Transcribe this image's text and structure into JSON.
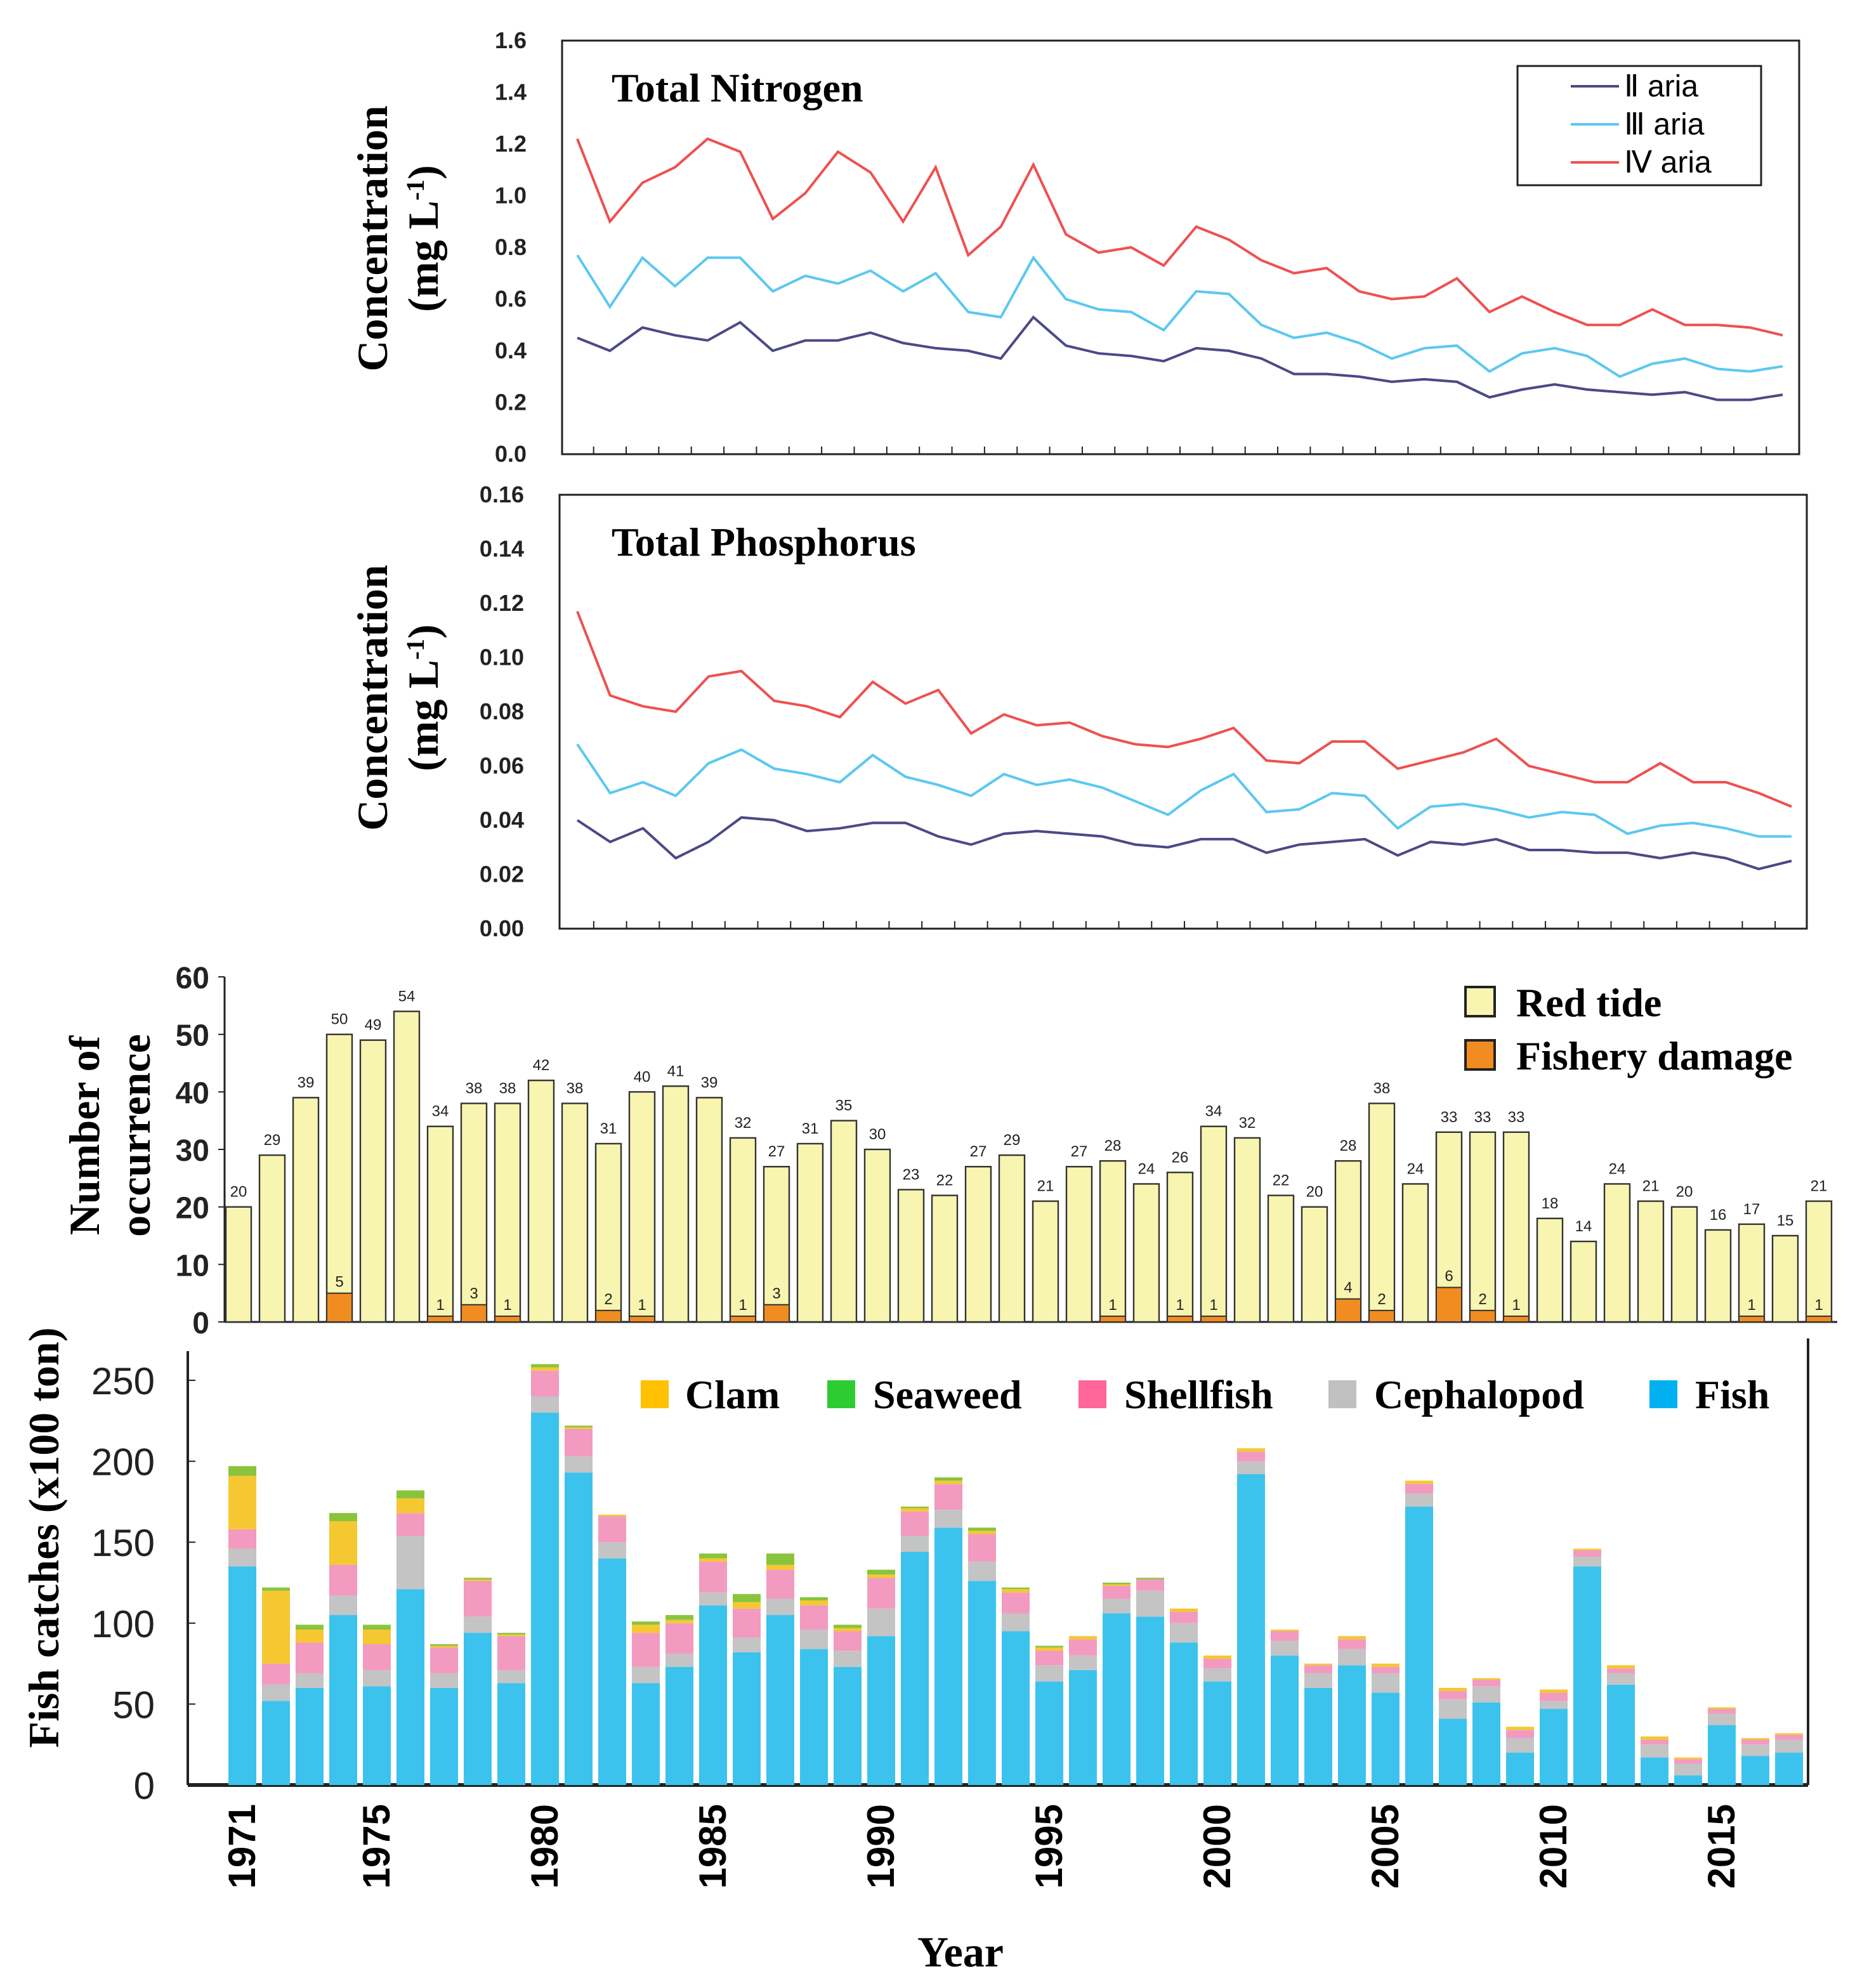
{
  "chart_data": [
    {
      "type": "line",
      "title": "Total Nitrogen",
      "ylabel": [
        "Concentration",
        "(mg L",
        "-1",
        ")"
      ],
      "ylim": [
        0,
        1.6
      ],
      "yticks": [
        "0.0",
        "0.2",
        "0.4",
        "0.6",
        "0.8",
        "1.0",
        "1.2",
        "1.4",
        "1.6"
      ],
      "grid": false,
      "legend": "top-right",
      "series": [
        {
          "name": "Ⅱ aria",
          "color": "#4b4a86",
          "values": [
            0.45,
            0.4,
            0.49,
            0.46,
            0.44,
            0.51,
            0.4,
            0.44,
            0.44,
            0.47,
            0.43,
            0.41,
            0.4,
            0.37,
            0.53,
            0.42,
            0.39,
            0.38,
            0.36,
            0.41,
            0.4,
            0.37,
            0.31,
            0.31,
            0.3,
            0.28,
            0.29,
            0.28,
            0.22,
            0.25,
            0.27,
            0.25,
            0.24,
            0.23,
            0.24,
            0.21,
            0.21,
            0.23
          ]
        },
        {
          "name": "Ⅲ aria",
          "color": "#5bc8f0",
          "values": [
            0.77,
            0.57,
            0.76,
            0.65,
            0.76,
            0.76,
            0.63,
            0.69,
            0.66,
            0.71,
            0.63,
            0.7,
            0.55,
            0.53,
            0.76,
            0.6,
            0.56,
            0.55,
            0.48,
            0.63,
            0.62,
            0.5,
            0.45,
            0.47,
            0.43,
            0.37,
            0.41,
            0.42,
            0.32,
            0.39,
            0.41,
            0.38,
            0.3,
            0.35,
            0.37,
            0.33,
            0.32,
            0.34
          ]
        },
        {
          "name": "Ⅳ aria",
          "color": "#ef5050",
          "values": [
            1.22,
            0.9,
            1.05,
            1.11,
            1.22,
            1.17,
            0.91,
            1.01,
            1.17,
            1.09,
            0.9,
            1.11,
            0.77,
            0.88,
            1.12,
            0.85,
            0.78,
            0.8,
            0.73,
            0.88,
            0.83,
            0.75,
            0.7,
            0.72,
            0.63,
            0.6,
            0.61,
            0.68,
            0.55,
            0.61,
            0.55,
            0.5,
            0.5,
            0.56,
            0.5,
            0.5,
            0.49,
            0.46
          ]
        }
      ]
    },
    {
      "type": "line",
      "title": "Total Phosphorus",
      "ylabel": [
        "Concentration",
        "(mg L",
        "-1",
        ")"
      ],
      "ylim": [
        0,
        0.16
      ],
      "yticks": [
        "0.00",
        "0.02",
        "0.04",
        "0.06",
        "0.08",
        "0.10",
        "0.12",
        "0.14",
        "0.16"
      ],
      "grid": false,
      "series": [
        {
          "color": "#4b4a86",
          "values": [
            0.04,
            0.032,
            0.037,
            0.026,
            0.032,
            0.041,
            0.04,
            0.036,
            0.037,
            0.039,
            0.039,
            0.034,
            0.031,
            0.035,
            0.036,
            0.035,
            0.034,
            0.031,
            0.03,
            0.033,
            0.033,
            0.028,
            0.031,
            0.032,
            0.033,
            0.027,
            0.032,
            0.031,
            0.033,
            0.029,
            0.029,
            0.028,
            0.028,
            0.026,
            0.028,
            0.026,
            0.022,
            0.025
          ]
        },
        {
          "color": "#5bc8f0",
          "values": [
            0.068,
            0.05,
            0.054,
            0.049,
            0.061,
            0.066,
            0.059,
            0.057,
            0.054,
            0.064,
            0.056,
            0.053,
            0.049,
            0.057,
            0.053,
            0.055,
            0.052,
            0.047,
            0.042,
            0.051,
            0.057,
            0.043,
            0.044,
            0.05,
            0.049,
            0.037,
            0.045,
            0.046,
            0.044,
            0.041,
            0.043,
            0.042,
            0.035,
            0.038,
            0.039,
            0.037,
            0.034,
            0.034
          ]
        },
        {
          "color": "#ef5050",
          "values": [
            0.117,
            0.086,
            0.082,
            0.08,
            0.093,
            0.095,
            0.084,
            0.082,
            0.078,
            0.091,
            0.083,
            0.088,
            0.072,
            0.079,
            0.075,
            0.076,
            0.071,
            0.068,
            0.067,
            0.07,
            0.074,
            0.062,
            0.061,
            0.069,
            0.069,
            0.059,
            0.062,
            0.065,
            0.07,
            0.06,
            0.057,
            0.054,
            0.054,
            0.061,
            0.054,
            0.054,
            0.05,
            0.045
          ]
        }
      ]
    },
    {
      "type": "bar",
      "ylabel": [
        "Number of",
        "occurrence"
      ],
      "ylim": [
        0,
        60
      ],
      "yticks": [
        "0",
        "10",
        "20",
        "30",
        "40",
        "50",
        "60"
      ],
      "legend": "top-right",
      "series": [
        {
          "name": "Red tide",
          "color": "#f8f5b0",
          "values": [
            20,
            29,
            39,
            50,
            49,
            54,
            34,
            38,
            38,
            42,
            38,
            31,
            40,
            41,
            39,
            32,
            27,
            31,
            35,
            30,
            23,
            22,
            27,
            29,
            21,
            27,
            28,
            24,
            26,
            34,
            32,
            22,
            20,
            28,
            38,
            24,
            33,
            33,
            33,
            18,
            14,
            24,
            21,
            20,
            16,
            17,
            15,
            21
          ]
        },
        {
          "name": "Fishery damage",
          "color": "#f08c20",
          "values": [
            0,
            0,
            0,
            5,
            0,
            0,
            1,
            3,
            1,
            0,
            0,
            2,
            1,
            0,
            0,
            1,
            3,
            0,
            0,
            0,
            0,
            0,
            0,
            0,
            0,
            0,
            1,
            0,
            1,
            1,
            0,
            0,
            0,
            4,
            2,
            0,
            6,
            2,
            1,
            0,
            0,
            0,
            0,
            0,
            0,
            1,
            0,
            1
          ]
        }
      ]
    },
    {
      "type": "bar",
      "stacked": true,
      "ylabel": "Fish catches (x100 ton)",
      "xlabel": "Year",
      "ylim": [
        0,
        250
      ],
      "yticks": [
        "0",
        "50",
        "100",
        "150",
        "200",
        "250"
      ],
      "xticks": [
        "1971",
        "1975",
        "1980",
        "1985",
        "1990",
        "1995",
        "2000",
        "2005",
        "2010",
        "2015"
      ],
      "categories_start": 1971,
      "legend": "top",
      "series": [
        {
          "name": "Fish",
          "color": "#3bc3ee",
          "legend_color": "#00b0f0",
          "values": [
            135,
            52,
            60,
            105,
            61,
            121,
            60,
            94,
            63,
            230,
            193,
            140,
            63,
            73,
            111,
            82,
            105,
            84,
            73,
            92,
            144,
            159,
            126,
            95,
            64,
            71,
            106,
            104,
            88,
            64,
            192,
            80,
            60,
            74,
            57,
            172,
            41,
            51,
            20,
            47,
            135,
            62,
            17,
            6,
            37,
            18,
            20
          ]
        },
        {
          "name": "Cephalopod",
          "color": "#c4c4c4",
          "legend_color": "#c0c0c0",
          "values": [
            11,
            10,
            9,
            12,
            10,
            33,
            9,
            10,
            8,
            10,
            10,
            10,
            10,
            8,
            8,
            9,
            10,
            12,
            10,
            17,
            10,
            11,
            12,
            11,
            10,
            9,
            9,
            16,
            12,
            8,
            8,
            9,
            9,
            10,
            12,
            8,
            12,
            10,
            9,
            5,
            6,
            7,
            8,
            7,
            7,
            7,
            8
          ]
        },
        {
          "name": "Shellfish",
          "color": "#f39ac0",
          "legend_color": "#ff6699",
          "values": [
            12,
            13,
            19,
            19,
            16,
            14,
            16,
            22,
            21,
            16,
            17,
            16,
            21,
            19,
            19,
            18,
            18,
            15,
            12,
            19,
            15,
            16,
            17,
            13,
            9,
            10,
            8,
            7,
            7,
            6,
            6,
            6,
            5,
            6,
            4,
            6,
            5,
            4,
            5,
            5,
            4,
            3,
            3,
            3,
            3,
            3,
            3
          ]
        },
        {
          "name": "Clam",
          "color": "#f5c832",
          "legend_color": "#ffc000",
          "values": [
            33,
            45,
            8,
            27,
            9,
            9,
            1,
            1,
            1,
            2,
            1,
            1,
            5,
            2,
            2,
            4,
            3,
            3,
            2,
            2,
            2,
            2,
            2,
            2,
            2,
            2,
            1,
            0,
            2,
            2,
            2,
            1,
            1,
            2,
            2,
            2,
            2,
            1,
            2,
            2,
            1,
            2,
            2,
            1,
            1,
            1,
            1
          ]
        },
        {
          "name": "Seaweed",
          "color": "#8ac43c",
          "legend_color": "#2ecc33",
          "values": [
            6,
            2,
            3,
            5,
            3,
            5,
            1,
            1,
            1,
            2,
            1,
            0,
            2,
            3,
            3,
            5,
            7,
            2,
            2,
            3,
            1,
            2,
            2,
            1,
            1,
            0,
            1,
            1,
            0,
            0,
            0,
            0,
            0,
            0,
            0,
            0,
            0,
            0,
            0,
            0,
            0,
            0,
            0,
            0,
            0,
            0,
            0
          ]
        }
      ]
    }
  ]
}
